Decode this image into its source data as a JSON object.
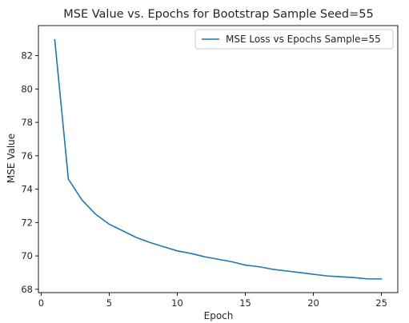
{
  "chart_data": {
    "type": "line",
    "title": "MSE Value vs. Epochs for Bootstrap Sample Seed=55",
    "xlabel": "Epoch",
    "ylabel": "MSE Value",
    "xlim": [
      -0.2,
      26.2
    ],
    "ylim": [
      67.8,
      83.8
    ],
    "xticks": [
      0,
      5,
      10,
      15,
      20,
      25
    ],
    "yticks": [
      68,
      70,
      72,
      74,
      76,
      78,
      80,
      82
    ],
    "grid": false,
    "legend_position": "upper right",
    "series": [
      {
        "name": "MSE Loss vs Epochs Sample=55",
        "color": "#1f77b4",
        "x": [
          1,
          2,
          3,
          4,
          5,
          6,
          7,
          8,
          9,
          10,
          11,
          12,
          13,
          14,
          15,
          16,
          17,
          18,
          19,
          20,
          21,
          22,
          23,
          24,
          25
        ],
        "y": [
          82.95,
          74.6,
          73.35,
          72.5,
          71.9,
          71.5,
          71.1,
          70.8,
          70.55,
          70.3,
          70.15,
          69.95,
          69.8,
          69.65,
          69.45,
          69.35,
          69.2,
          69.1,
          69.0,
          68.9,
          68.8,
          68.75,
          68.7,
          68.62,
          68.62
        ]
      }
    ]
  }
}
